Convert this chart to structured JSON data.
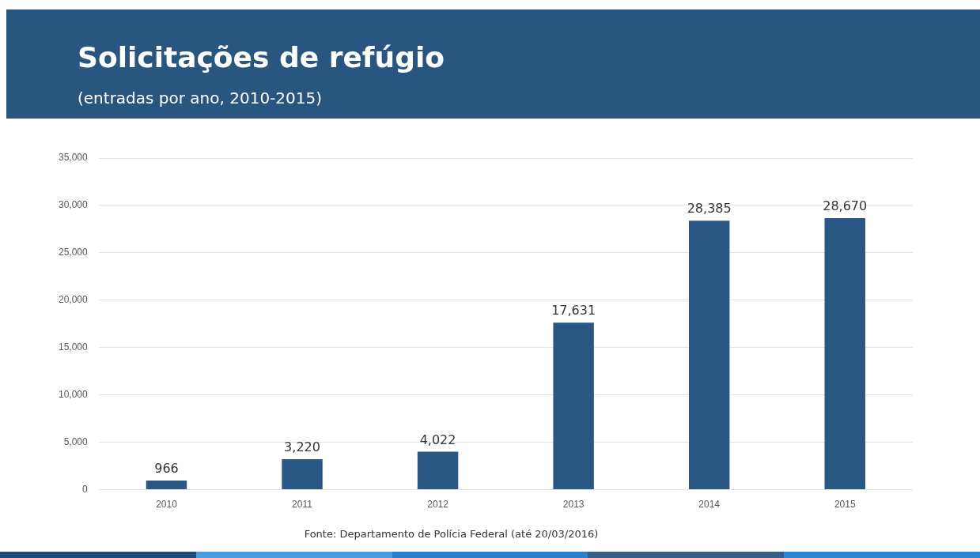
{
  "chart_data": {
    "type": "bar",
    "title": "Solicitações de refúgio",
    "subtitle": "(entradas por ano, 2010-2015)",
    "categories": [
      "2010",
      "2011",
      "2012",
      "2013",
      "2014",
      "2015"
    ],
    "values": [
      966,
      3220,
      4022,
      17631,
      28385,
      28670
    ],
    "color": "#2a5783",
    "value_labels": [
      "966",
      "3,220",
      "4,022",
      "17,631",
      "28,385",
      "28,670"
    ],
    "ylim": [
      0,
      35000
    ],
    "yticks": [
      0,
      {
        "value": 5000,
        "label": "5,000"
      },
      {
        "value": 10000,
        "label": "10,000"
      },
      {
        "value": 15000,
        "label": "15,000"
      },
      {
        "value": 20000,
        "label": "20,000"
      },
      {
        "value": 25000,
        "label": "25,000"
      },
      {
        "value": 30000,
        "label": "30,000"
      },
      {
        "value": 35000,
        "label": "35,000"
      }
    ],
    "grid": "y",
    "legend": false,
    "annotations": [
      "Fonte: Departamento de Polícia Federal (até 20/03/2016)"
    ]
  }
}
